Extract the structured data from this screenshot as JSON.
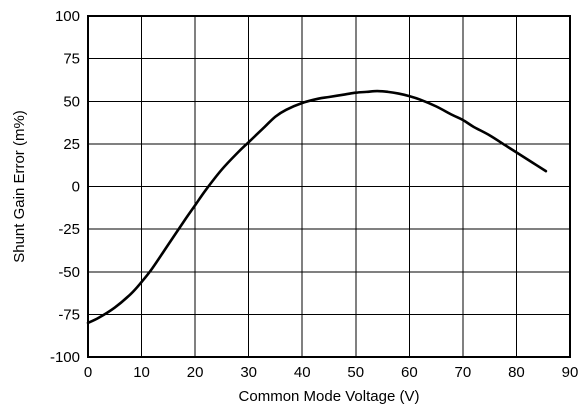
{
  "chart_data": {
    "type": "line",
    "title": "",
    "xlabel": "Common Mode Voltage (V)",
    "ylabel": "Shunt Gain Error (m%)",
    "xlim": [
      0,
      90
    ],
    "ylim": [
      -100,
      100
    ],
    "xticks": [
      0,
      10,
      20,
      30,
      40,
      50,
      60,
      70,
      80,
      90
    ],
    "yticks": [
      -100,
      -75,
      -50,
      -25,
      0,
      25,
      50,
      75,
      100
    ],
    "grid": true,
    "legend": "none",
    "series": [
      {
        "color": "#000000",
        "x": [
          0,
          2,
          5,
          8,
          10,
          12,
          15,
          18,
          20,
          22,
          25,
          28,
          30,
          33,
          35,
          37,
          40,
          43,
          45,
          48,
          50,
          52,
          54,
          56,
          58,
          60,
          62,
          65,
          68,
          70,
          72,
          75,
          78,
          80,
          83,
          85.5
        ],
        "y": [
          -80,
          -77,
          -71,
          -63,
          -56,
          -48,
          -34,
          -20,
          -11,
          -2,
          10,
          20,
          26,
          35,
          41,
          45,
          49,
          51.5,
          52.5,
          54,
          55,
          55.5,
          56,
          55.5,
          54.5,
          53,
          51,
          47,
          42,
          39,
          35,
          30,
          24,
          20,
          14,
          9
        ]
      }
    ]
  }
}
